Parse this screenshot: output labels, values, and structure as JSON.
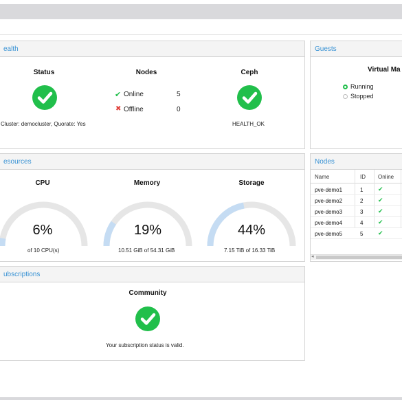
{
  "health": {
    "header": "ealth",
    "status_title": "Status",
    "status_text": "Cluster: democluster, Quorate: Yes",
    "nodes_title": "Nodes",
    "online_label": "Online",
    "online_count": "5",
    "offline_label": "Offline",
    "offline_count": "0",
    "ceph_title": "Ceph",
    "ceph_text": "HEALTH_OK"
  },
  "guests": {
    "header": "Guests",
    "vm_title": "Virtual Ma",
    "running_label": "Running",
    "stopped_label": "Stopped"
  },
  "resources": {
    "header": "esources",
    "cpu": {
      "title": "CPU",
      "value": "6%",
      "percent": 6,
      "sub": "of 10 CPU(s)"
    },
    "memory": {
      "title": "Memory",
      "value": "19%",
      "percent": 19,
      "sub": "10.51 GiB of 54.31 GiB"
    },
    "storage": {
      "title": "Storage",
      "value": "44%",
      "percent": 44,
      "sub": "7.15 TiB of 16.33 TiB"
    }
  },
  "nodes": {
    "header": "Nodes",
    "columns": [
      "Name",
      "ID",
      "Online"
    ],
    "rows": [
      {
        "name": "pve-demo1",
        "id": "1"
      },
      {
        "name": "pve-demo2",
        "id": "2"
      },
      {
        "name": "pve-demo3",
        "id": "3"
      },
      {
        "name": "pve-demo4",
        "id": "4"
      },
      {
        "name": "pve-demo5",
        "id": "5"
      }
    ]
  },
  "subscriptions": {
    "header": "ubscriptions",
    "title": "Community",
    "text": "Your subscription status is valid."
  },
  "colors": {
    "accent": "#3892d4",
    "ok_green": "#21bf4b",
    "offline_red": "#e0403a",
    "gauge_track": "#e6e6e6",
    "gauge_fill": "#c5dcf3"
  },
  "icons": {
    "status": "check-circle-icon",
    "online": "check-icon",
    "offline": "times-icon",
    "ceph": "check-circle-icon",
    "subscription": "check-circle-icon"
  }
}
